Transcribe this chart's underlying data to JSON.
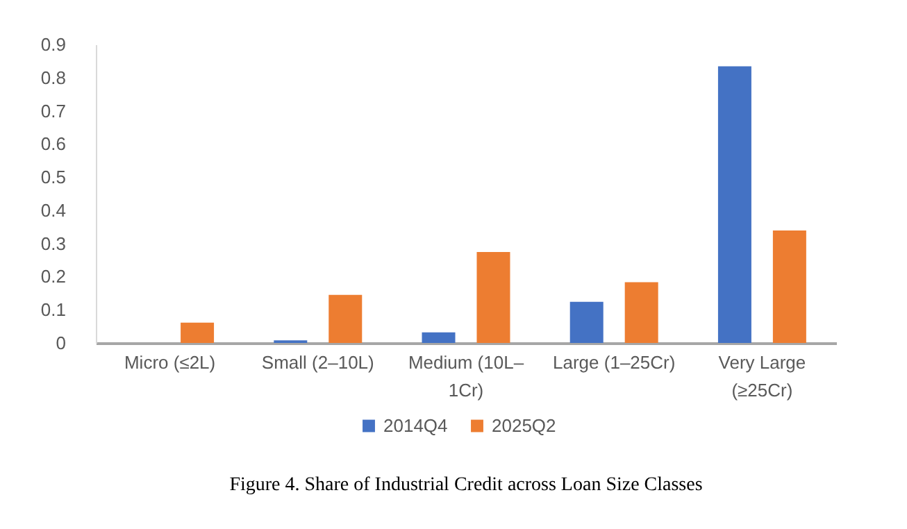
{
  "chart_data": {
    "type": "bar",
    "title": "Figure 4. Share of Industrial Credit across Loan Size Classes",
    "categories": [
      "Micro (≤2L)",
      "Small (2–10L)",
      "Medium (10L–1Cr)",
      "Large (1–25Cr)",
      "Very Large (≥25Cr)"
    ],
    "series": [
      {
        "name": "2014Q4",
        "color": "#4472c4",
        "values": [
          0,
          0.008,
          0.032,
          0.124,
          0.834
        ]
      },
      {
        "name": "2025Q2",
        "color": "#ed7d31",
        "values": [
          0.061,
          0.145,
          0.274,
          0.183,
          0.339
        ]
      }
    ],
    "ylim": [
      0,
      0.9
    ],
    "yticks": [
      0,
      0.1,
      0.2,
      0.3,
      0.4,
      0.5,
      0.6,
      0.7,
      0.8,
      0.9
    ],
    "grid": false,
    "legend": "bottom"
  }
}
